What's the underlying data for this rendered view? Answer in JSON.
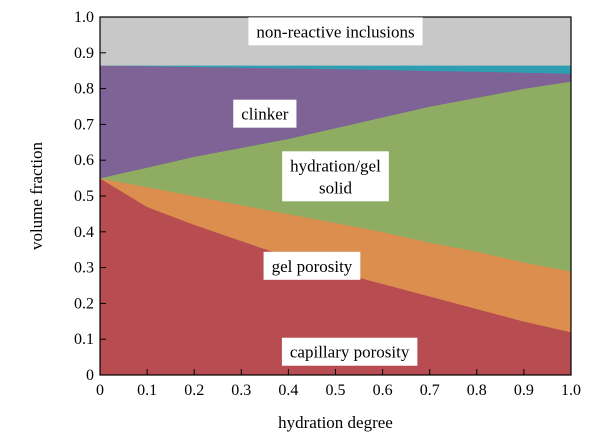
{
  "chart_data": {
    "type": "area",
    "title": "",
    "xlabel": "hydration degree",
    "ylabel": "volume fraction",
    "xlim": [
      0,
      1
    ],
    "ylim": [
      0,
      1
    ],
    "grid": false,
    "x": [
      0,
      0.1,
      0.2,
      0.3,
      0.4,
      0.5,
      0.6,
      0.7,
      0.8,
      0.9,
      1.0
    ],
    "boundaries": [
      {
        "name": "capillary porosity",
        "upper": [
          0.55,
          0.47,
          0.42,
          0.375,
          0.33,
          0.29,
          0.255,
          0.22,
          0.185,
          0.15,
          0.12
        ]
      },
      {
        "name": "gel porosity",
        "upper": [
          0.55,
          0.525,
          0.5,
          0.475,
          0.45,
          0.425,
          0.4,
          0.37,
          0.345,
          0.315,
          0.29
        ]
      },
      {
        "name": "hydration/gel solid",
        "upper": [
          0.55,
          0.58,
          0.61,
          0.635,
          0.66,
          0.69,
          0.72,
          0.75,
          0.775,
          0.8,
          0.82
        ]
      },
      {
        "name": "clinker",
        "upper": [
          0.865,
          0.863,
          0.861,
          0.859,
          0.857,
          0.855,
          0.853,
          0.85,
          0.848,
          0.845,
          0.842
        ]
      },
      {
        "name": "teal band",
        "upper": [
          0.865,
          0.865,
          0.865,
          0.865,
          0.865,
          0.865,
          0.865,
          0.865,
          0.865,
          0.865,
          0.865
        ]
      },
      {
        "name": "non-reactive inclusions",
        "upper": [
          1,
          1,
          1,
          1,
          1,
          1,
          1,
          1,
          1,
          1,
          1
        ]
      }
    ],
    "region_labels": [
      {
        "text": "non-reactive inclusions",
        "lines": [
          "non-reactive inclusions"
        ],
        "x": 0.5,
        "y": 0.96
      },
      {
        "text": "clinker",
        "lines": [
          "clinker"
        ],
        "x": 0.35,
        "y": 0.73
      },
      {
        "text": "hydration/gel solid",
        "lines": [
          "hydration/gel",
          "solid"
        ],
        "x": 0.5,
        "y": 0.555
      },
      {
        "text": "gel porosity",
        "lines": [
          "gel porosity"
        ],
        "x": 0.45,
        "y": 0.305
      },
      {
        "text": "capillary porosity",
        "lines": [
          "capillary porosity"
        ],
        "x": 0.53,
        "y": 0.065
      }
    ],
    "xticks": [
      "0",
      "0.1",
      "0.2",
      "0.3",
      "0.4",
      "0.5",
      "0.6",
      "0.7",
      "0.8",
      "0.9",
      "1.0"
    ],
    "yticks": [
      "0",
      "0.1",
      "0.2",
      "0.3",
      "0.4",
      "0.5",
      "0.6",
      "0.7",
      "0.8",
      "0.9",
      "1.0"
    ],
    "colors": {
      "capillary porosity": "#b84d51",
      "gel porosity": "#dc8e4e",
      "hydration/gel solid": "#8ead63",
      "clinker": "#7f6296",
      "teal band": "#2e9fb2",
      "non-reactive inclusions": "#c8c8c8"
    }
  }
}
